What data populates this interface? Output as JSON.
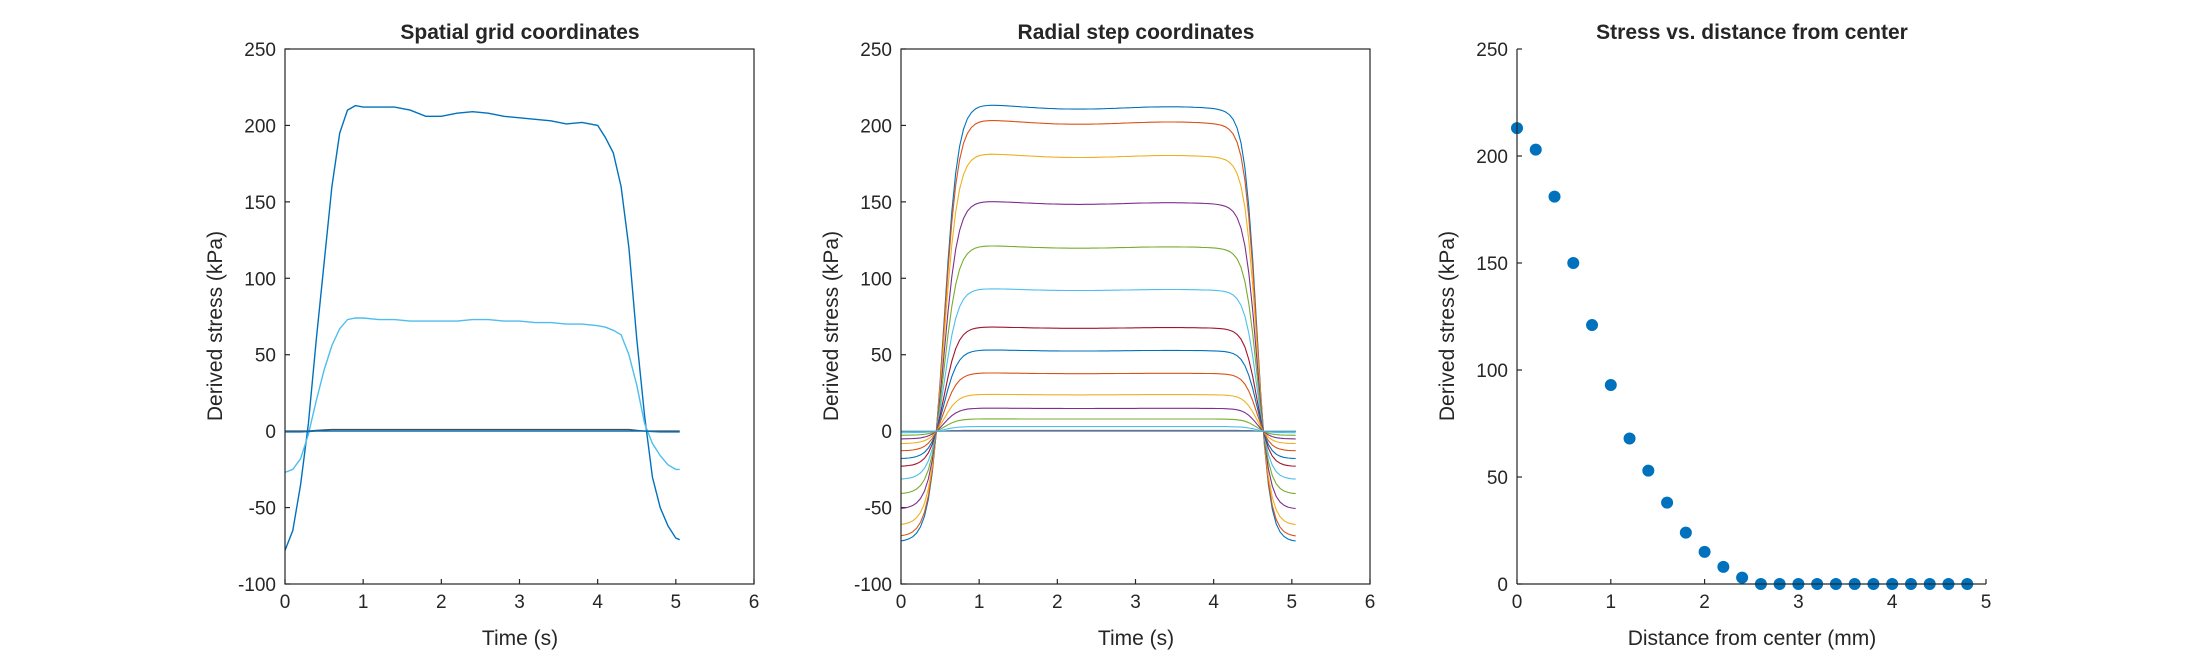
{
  "figure": {
    "background": "#ffffff",
    "axis_color": "#262626",
    "palette": [
      "#0072BD",
      "#D95319",
      "#EDB120",
      "#7E2F8E",
      "#77AC30",
      "#4DBEEE",
      "#A2142F"
    ]
  },
  "chart_data": [
    {
      "type": "line",
      "title": "Spatial grid coordinates",
      "xlabel": "Time (s)",
      "ylabel": "Derived stress (kPa)",
      "xlim": [
        0,
        6
      ],
      "ylim": [
        -100,
        250
      ],
      "xticks": [
        0,
        1,
        2,
        3,
        4,
        5,
        6
      ],
      "yticks": [
        -100,
        -50,
        0,
        50,
        100,
        150,
        200,
        250
      ],
      "grid": false,
      "legend": "none",
      "x": [
        0,
        0.1,
        0.2,
        0.3,
        0.4,
        0.5,
        0.6,
        0.7,
        0.8,
        0.9,
        1.0,
        1.2,
        1.4,
        1.6,
        1.8,
        2.0,
        2.2,
        2.4,
        2.6,
        2.8,
        3.0,
        3.2,
        3.4,
        3.6,
        3.8,
        4.0,
        4.1,
        4.2,
        4.3,
        4.4,
        4.5,
        4.6,
        4.7,
        4.8,
        4.9,
        5.0,
        5.05
      ],
      "series": [
        {
          "color": "#0072BD",
          "values": [
            -78,
            -65,
            -35,
            5,
            60,
            110,
            160,
            195,
            210,
            213,
            212,
            212,
            212,
            210,
            206,
            206,
            208,
            209,
            208,
            206,
            205,
            204,
            203,
            201,
            202,
            200,
            192,
            182,
            160,
            120,
            60,
            10,
            -30,
            -50,
            -62,
            -70,
            -71
          ]
        },
        {
          "color": "#4DBEEE",
          "values": [
            -27,
            -25,
            -18,
            -2,
            20,
            40,
            56,
            67,
            73,
            74,
            74,
            73,
            73,
            72,
            72,
            72,
            72,
            73,
            73,
            72,
            72,
            71,
            71,
            70,
            70,
            69,
            68,
            66,
            63,
            50,
            30,
            5,
            -8,
            -16,
            -22,
            -25,
            -25
          ]
        },
        {
          "color": "#4D4D4D",
          "values": [
            0,
            0,
            0,
            0,
            0.5,
            0.8,
            1,
            1,
            1,
            1,
            1,
            1,
            1,
            1,
            1,
            1,
            1,
            1,
            1,
            1,
            1,
            1,
            1,
            1,
            1,
            1,
            1,
            1,
            1,
            1,
            0.5,
            0,
            0,
            0,
            0,
            0,
            0
          ]
        },
        {
          "color": "#0072BD",
          "values": [
            -0.5,
            -0.5,
            -0.5,
            -0.3,
            0,
            0,
            0,
            0,
            0,
            0,
            0,
            0,
            0,
            0,
            0,
            0,
            0,
            0,
            0,
            0,
            0,
            0,
            0,
            0,
            0,
            0,
            0,
            0,
            0,
            0,
            0,
            0,
            -0.3,
            -0.5,
            -0.5,
            -0.5,
            -0.5
          ]
        }
      ]
    },
    {
      "type": "line",
      "title": "Radial step coordinates",
      "xlabel": "Time (s)",
      "ylabel": "Derived stress (kPa)",
      "xlim": [
        0,
        6
      ],
      "ylim": [
        -100,
        250
      ],
      "xticks": [
        0,
        1,
        2,
        3,
        4,
        5,
        6
      ],
      "yticks": [
        -100,
        -50,
        0,
        50,
        100,
        150,
        200,
        250
      ],
      "grid": false,
      "legend": "none",
      "x_range": [
        0,
        5.05
      ],
      "plateau_levels": [
        213,
        203,
        181,
        150,
        121,
        93,
        68,
        53,
        38,
        24,
        15,
        8,
        3,
        0.5,
        0,
        0,
        0,
        0,
        0,
        0
      ],
      "colors": [
        "#0072BD",
        "#D95319",
        "#EDB120",
        "#7E2F8E",
        "#77AC30",
        "#4DBEEE",
        "#A2142F",
        "#0072BD",
        "#D95319",
        "#EDB120",
        "#7E2F8E",
        "#77AC30",
        "#4DBEEE",
        "#A2142F",
        "#0072BD",
        "#D95319",
        "#EDB120",
        "#7E2F8E",
        "#77AC30",
        "#4DBEEE"
      ]
    },
    {
      "type": "scatter",
      "title": "Stress vs. distance from center",
      "xlabel": "Distance from center (mm)",
      "ylabel": "Derived stress (kPa)",
      "xlim": [
        0,
        5
      ],
      "ylim": [
        0,
        250
      ],
      "xticks": [
        0,
        1,
        2,
        3,
        4,
        5
      ],
      "yticks": [
        0,
        50,
        100,
        150,
        200,
        250
      ],
      "grid": false,
      "legend": "none",
      "box": false,
      "marker_color": "#0072BD",
      "x": [
        0,
        0.2,
        0.4,
        0.6,
        0.8,
        1.0,
        1.2,
        1.4,
        1.6,
        1.8,
        2.0,
        2.2,
        2.4,
        2.6,
        2.8,
        3.0,
        3.2,
        3.4,
        3.6,
        3.8,
        4.0,
        4.2,
        4.4,
        4.6,
        4.8
      ],
      "values": [
        213,
        203,
        181,
        150,
        121,
        93,
        68,
        53,
        38,
        24,
        15,
        8,
        3,
        0,
        0,
        0,
        0,
        0,
        0,
        0,
        0,
        0,
        0,
        0,
        0
      ]
    }
  ]
}
